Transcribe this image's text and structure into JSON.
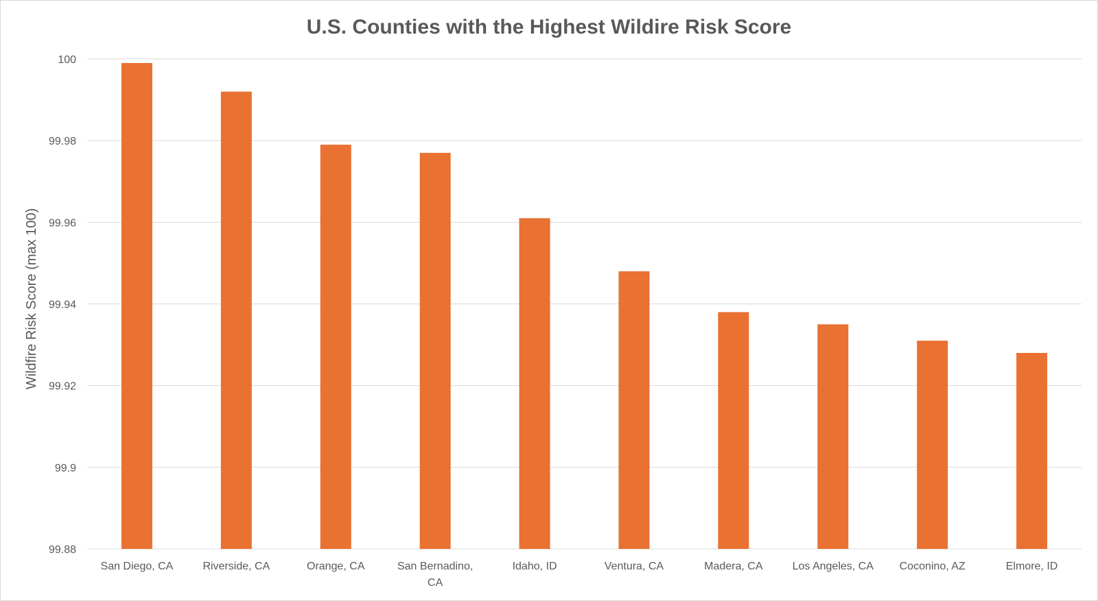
{
  "colors": {
    "bar": "#E97132",
    "gridline": "#d9d9d9",
    "text": "#595959",
    "axis_line": "#d9d9d9"
  },
  "chart_data": {
    "type": "bar",
    "title": "U.S. Counties with the Highest Wildire Risk Score",
    "xlabel": "",
    "ylabel": "Wildfire Risk Score (max 100)",
    "ylim": [
      99.88,
      100
    ],
    "yticks": [
      "99.88",
      "99.9",
      "99.92",
      "99.94",
      "99.96",
      "99.98",
      "100"
    ],
    "grid": true,
    "legend": "none",
    "categories": [
      [
        "San Diego, CA"
      ],
      [
        "Riverside, CA"
      ],
      [
        "Orange, CA"
      ],
      [
        "San Bernadino,",
        "CA"
      ],
      [
        "Idaho, ID"
      ],
      [
        "Ventura, CA"
      ],
      [
        "Madera, CA"
      ],
      [
        "Los Angeles, CA"
      ],
      [
        "Coconino, AZ"
      ],
      [
        "Elmore, ID"
      ]
    ],
    "values": [
      99.999,
      99.992,
      99.979,
      99.977,
      99.961,
      99.948,
      99.938,
      99.935,
      99.931,
      99.928
    ]
  }
}
